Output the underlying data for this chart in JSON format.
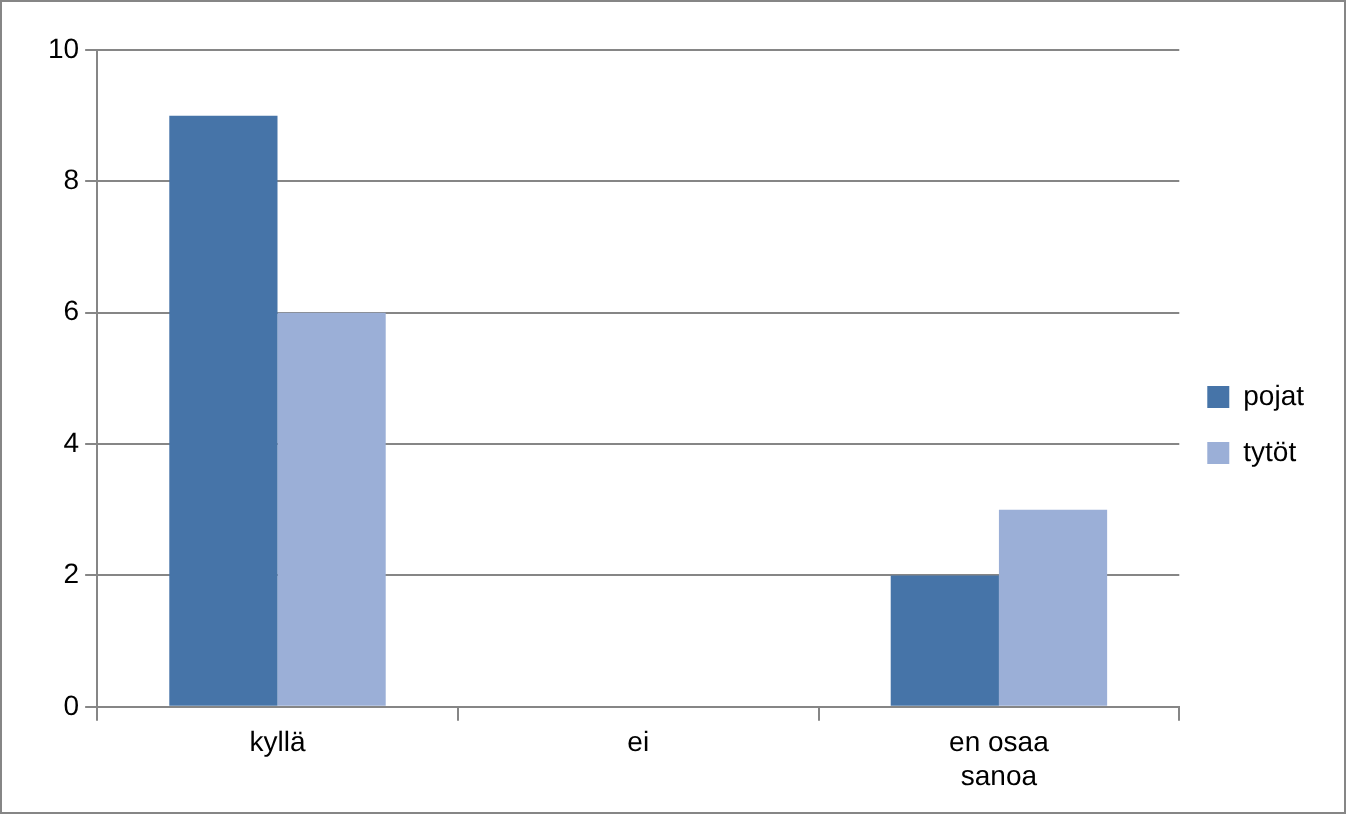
{
  "chart_data": {
    "type": "bar",
    "categories": [
      "kyllä",
      "ei",
      "en osaa sanoa"
    ],
    "series": [
      {
        "name": "pojat",
        "color": "#4674a8",
        "values": [
          9,
          0,
          2
        ]
      },
      {
        "name": "tytöt",
        "color": "#9bafd7",
        "values": [
          6,
          0,
          3
        ]
      }
    ],
    "ylim": [
      0,
      10
    ],
    "yticks": [
      0,
      2,
      4,
      6,
      8,
      10
    ],
    "grid": "y",
    "legend": "right"
  }
}
